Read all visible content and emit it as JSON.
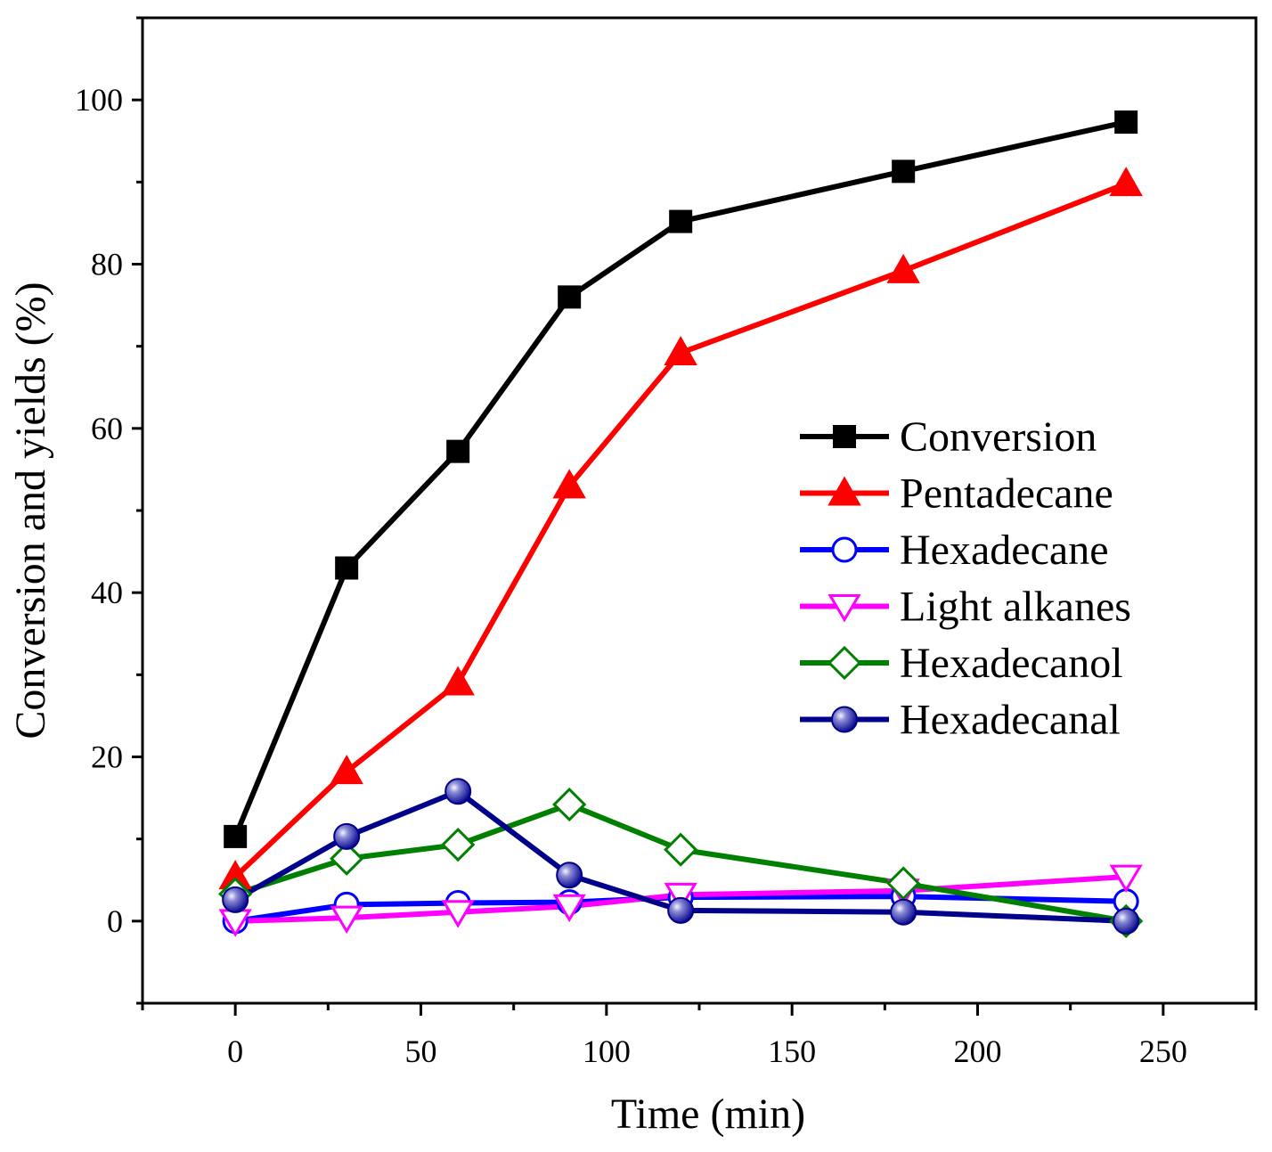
{
  "chart_data": {
    "type": "line",
    "xlabel": "Time (min)",
    "ylabel": "Conversion and yields (%)",
    "xlim": [
      -25,
      275
    ],
    "ylim": [
      -10,
      110
    ],
    "xticks": [
      0,
      50,
      100,
      150,
      200,
      250
    ],
    "xtick_labels": [
      "0",
      "50",
      "100",
      "150",
      "200",
      "250"
    ],
    "yticks": [
      0,
      20,
      40,
      60,
      80,
      100
    ],
    "ytick_labels": [
      "0",
      "20",
      "40",
      "60",
      "80",
      "100"
    ],
    "grid": false,
    "legend_position": "center-right",
    "x": [
      0,
      30,
      60,
      90,
      120,
      180,
      240
    ],
    "series": [
      {
        "name": "Conversion",
        "color": "#000000",
        "marker": "square-filled",
        "values": [
          10.3,
          43.0,
          57.2,
          76.0,
          85.2,
          91.3,
          97.3
        ]
      },
      {
        "name": "Pentadecane",
        "color": "#ff0000",
        "marker": "triangle-up-filled",
        "values": [
          5.4,
          18.2,
          29.0,
          53.0,
          69.2,
          79.2,
          89.8
        ]
      },
      {
        "name": "Hexadecane",
        "color": "#0000ff",
        "marker": "circle-open",
        "values": [
          0.0,
          2.0,
          2.2,
          2.3,
          2.9,
          3.0,
          2.4
        ]
      },
      {
        "name": "Light alkanes",
        "color": "#ff00ff",
        "marker": "triangle-down-open",
        "values": [
          0.0,
          0.4,
          1.1,
          1.8,
          3.2,
          3.7,
          5.4
        ]
      },
      {
        "name": "Hexadecanol",
        "color": "#008000",
        "marker": "diamond-open",
        "values": [
          3.3,
          7.6,
          9.3,
          14.2,
          8.7,
          4.6,
          0.0
        ]
      },
      {
        "name": "Hexadecanal",
        "color": "#00008b",
        "marker": "sphere",
        "values": [
          2.6,
          10.3,
          15.8,
          5.6,
          1.3,
          1.1,
          0.0
        ]
      }
    ]
  }
}
